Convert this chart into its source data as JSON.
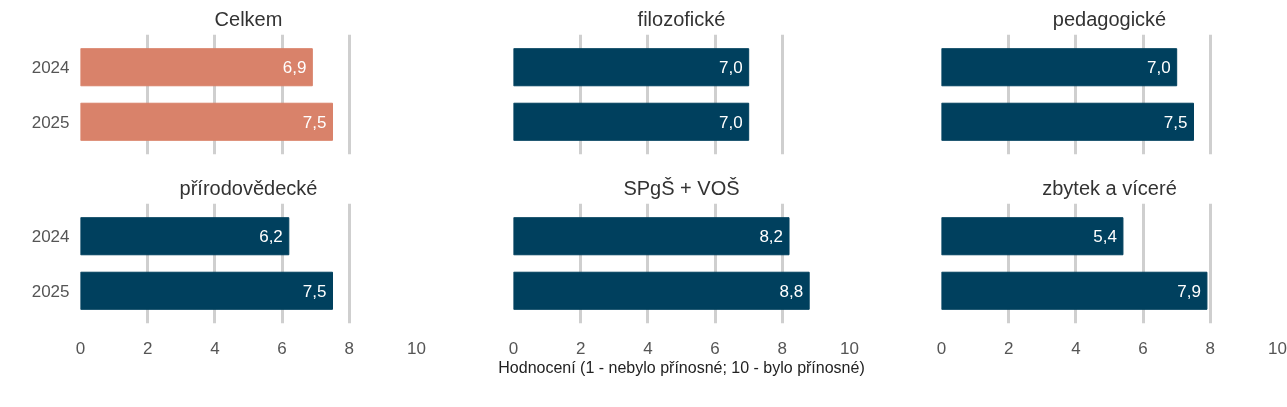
{
  "chart_data": [
    {
      "type": "bar",
      "orientation": "horizontal",
      "title": "Celkem",
      "categories": [
        "2024",
        "2025"
      ],
      "values": [
        6.9,
        7.5
      ],
      "color": "#d9826a",
      "value_labels": [
        "6,9",
        "7,5"
      ],
      "xlim": [
        0,
        10
      ],
      "xticks": [
        0,
        2,
        4,
        6,
        8,
        10
      ],
      "grid": "x",
      "tick_labels": "y"
    },
    {
      "type": "bar",
      "orientation": "horizontal",
      "title": "filozofické",
      "categories": [
        "2024",
        "2025"
      ],
      "values": [
        7.0,
        7.0
      ],
      "color": "#00405e",
      "value_labels": [
        "7,0",
        "7,0"
      ],
      "xlim": [
        0,
        10
      ],
      "xticks": [
        0,
        2,
        4,
        6,
        8,
        10
      ],
      "grid": "x",
      "tick_labels": false
    },
    {
      "type": "bar",
      "orientation": "horizontal",
      "title": "pedagogické",
      "categories": [
        "2024",
        "2025"
      ],
      "values": [
        7.0,
        7.5
      ],
      "color": "#00405e",
      "value_labels": [
        "7,0",
        "7,5"
      ],
      "xlim": [
        0,
        10
      ],
      "xticks": [
        0,
        2,
        4,
        6,
        8,
        10
      ],
      "grid": "x",
      "tick_labels": false
    },
    {
      "type": "bar",
      "orientation": "horizontal",
      "title": "přírodovědecké",
      "categories": [
        "2024",
        "2025"
      ],
      "values": [
        6.2,
        7.5
      ],
      "color": "#00405e",
      "value_labels": [
        "6,2",
        "7,5"
      ],
      "xlim": [
        0,
        10
      ],
      "xticks": [
        0,
        2,
        4,
        6,
        8,
        10
      ],
      "grid": "x"
    },
    {
      "type": "bar",
      "orientation": "horizontal",
      "title": "SPgŠ + VOŠ",
      "categories": [
        "2024",
        "2025"
      ],
      "values": [
        8.2,
        8.8
      ],
      "color": "#00405e",
      "value_labels": [
        "8,2",
        "8,8"
      ],
      "xlim": [
        0,
        10
      ],
      "xticks": [
        0,
        2,
        4,
        6,
        8,
        10
      ],
      "grid": "x",
      "tick_labels": "x",
      "xlabel": "Hodnocení (1 - nebylo přínosné; 10 - bylo přínosné)"
    },
    {
      "type": "bar",
      "orientation": "horizontal",
      "title": "zbytek a víceré",
      "categories": [
        "2024",
        "2025"
      ],
      "values": [
        5.4,
        7.9
      ],
      "color": "#00405e",
      "value_labels": [
        "5,4",
        "7,9"
      ],
      "xlim": [
        0,
        10
      ],
      "xticks": [
        0,
        2,
        4,
        6,
        8,
        10
      ],
      "grid": "x",
      "tick_labels": "x"
    }
  ]
}
